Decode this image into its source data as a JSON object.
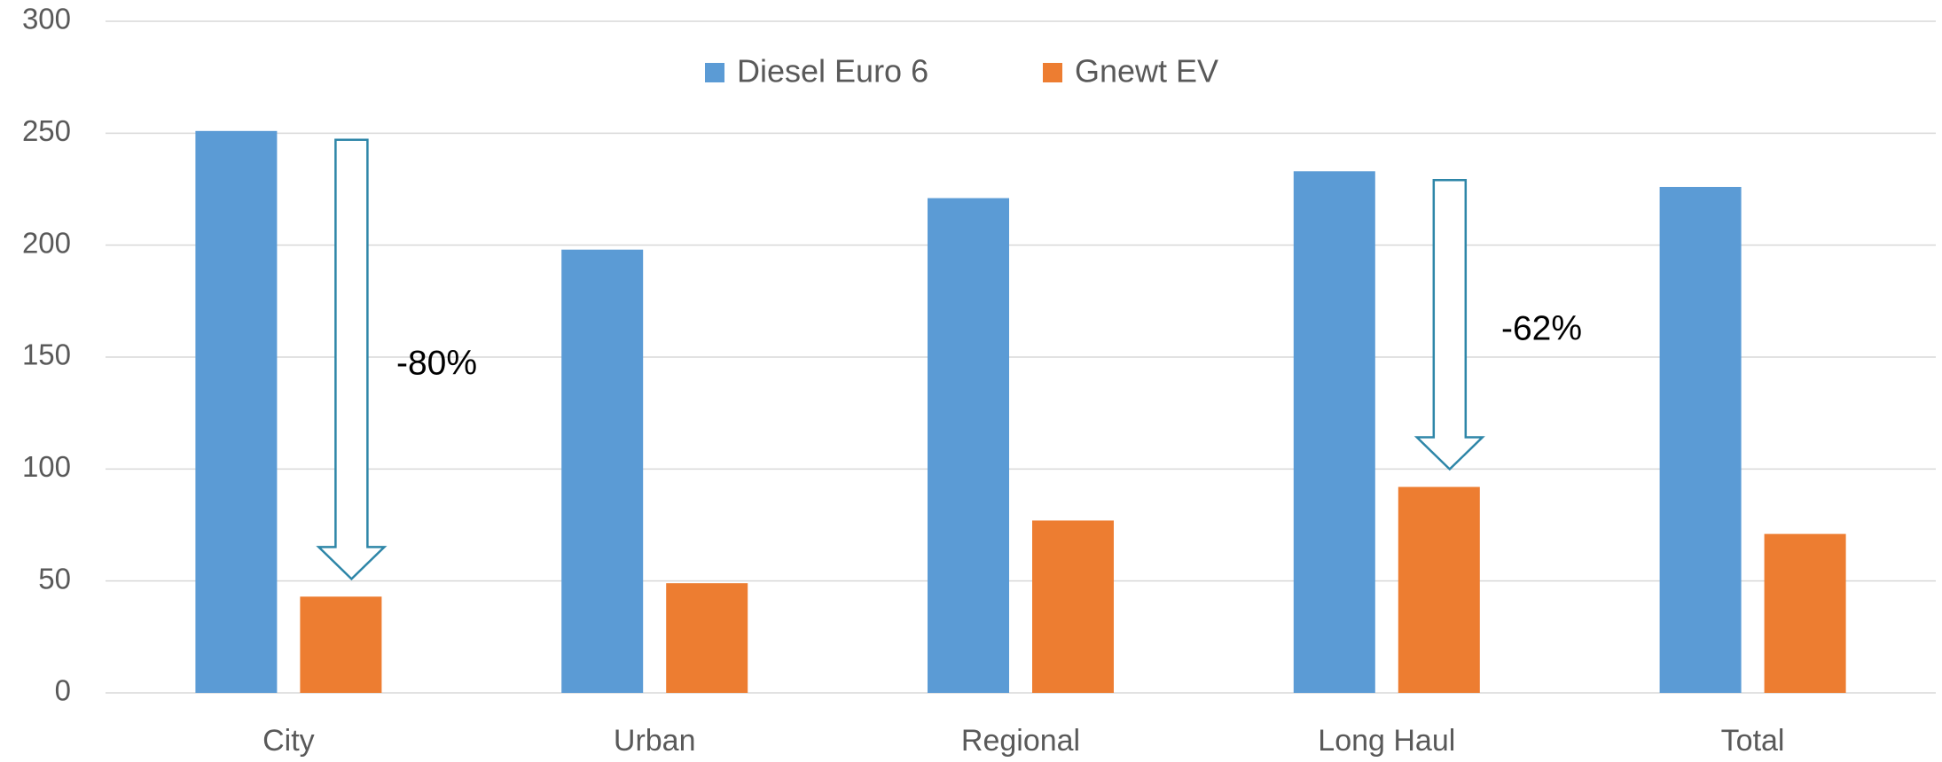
{
  "chart_data": {
    "type": "bar",
    "categories": [
      "City",
      "Urban",
      "Regional",
      "Long Haul",
      "Total"
    ],
    "series": [
      {
        "name": "Diesel Euro 6",
        "color": "#5b9bd5",
        "values": [
          251,
          198,
          221,
          233,
          226
        ]
      },
      {
        "name": "Gnewt EV",
        "color": "#ed7d31",
        "values": [
          43,
          49,
          77,
          92,
          71
        ]
      }
    ],
    "ylim": [
      0,
      300
    ],
    "yticks": [
      0,
      50,
      100,
      150,
      200,
      250,
      300
    ],
    "grid": true,
    "legend": "top",
    "annotations": [
      "-80%",
      "-62%"
    ]
  }
}
